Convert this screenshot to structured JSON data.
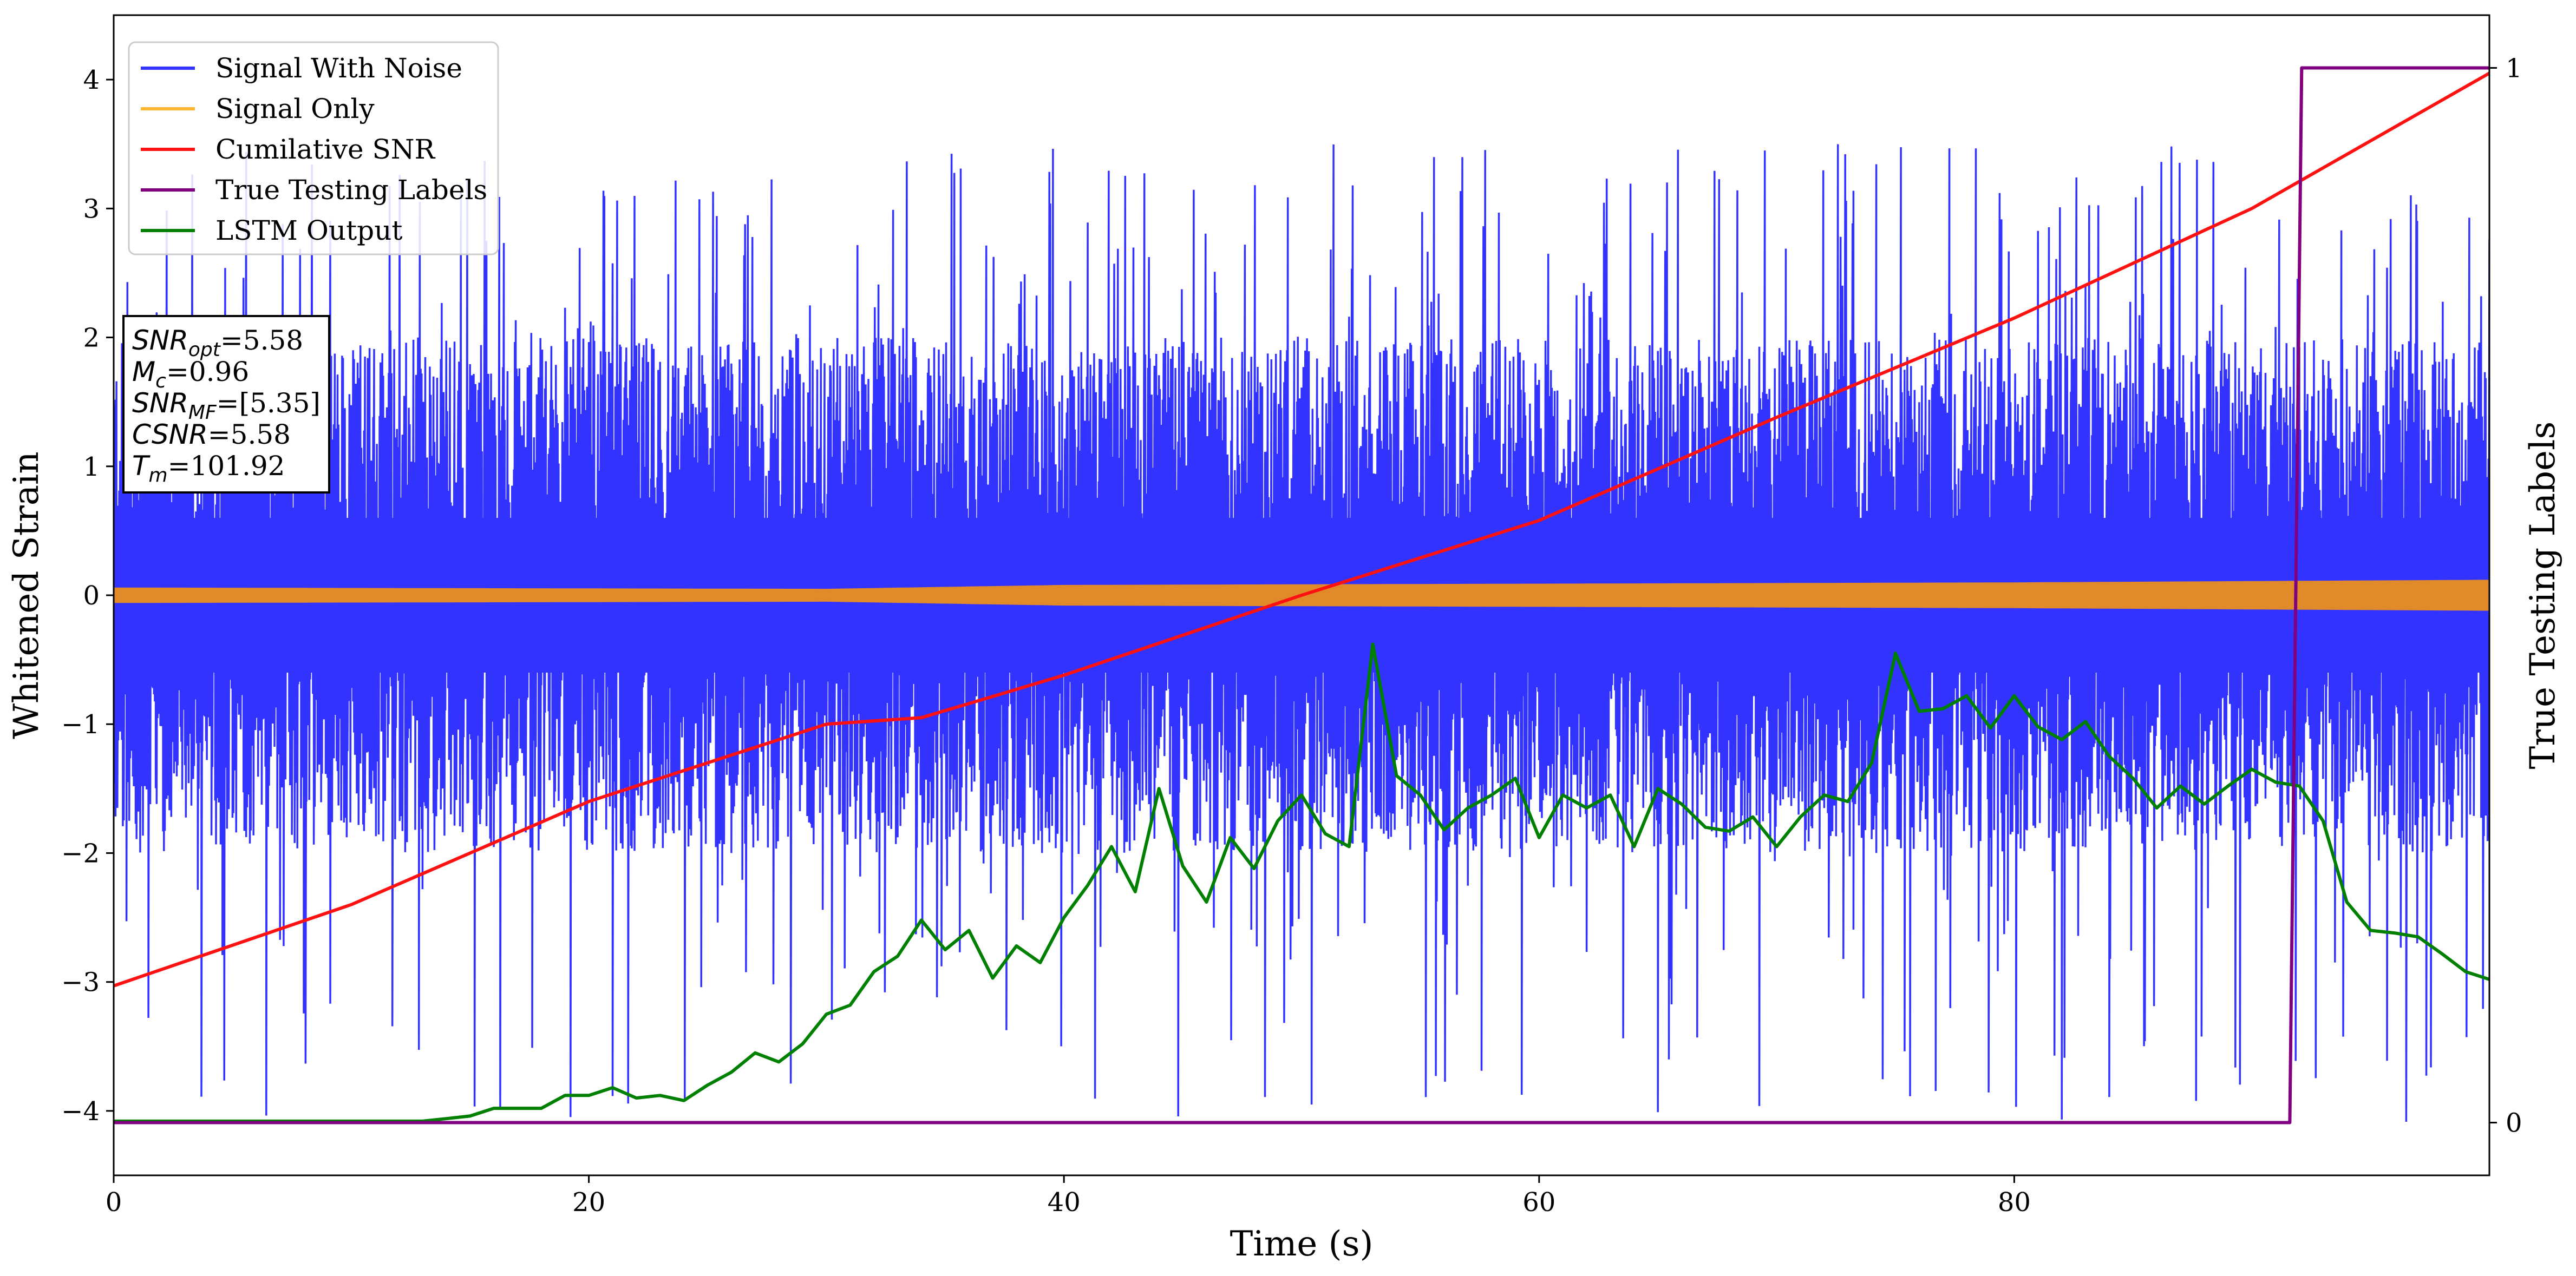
{
  "chart_data": {
    "type": "line",
    "xlabel": "Time (s)",
    "ylabel": "Whitened Strain",
    "ylabel_right": "True Testing Labels",
    "xlim": [
      0,
      100
    ],
    "ylim": [
      -4.5,
      4.5
    ],
    "ylim_right": [
      -0.05,
      1.05
    ],
    "x_ticks": [
      0,
      20,
      40,
      60,
      80
    ],
    "y_ticks": [
      -4,
      -3,
      -2,
      -1,
      0,
      1,
      2,
      3,
      4
    ],
    "y_right_ticks": [
      0,
      1
    ],
    "grid": false,
    "legend": {
      "position": "top-left",
      "entries": [
        {
          "label": "Signal With Noise",
          "color": "#3333ff"
        },
        {
          "label": "Signal Only",
          "color": "#ffb733"
        },
        {
          "label": "Cumilative SNR",
          "color": "#ff1111"
        },
        {
          "label": "True Testing Labels",
          "color": "#800080"
        },
        {
          "label": "LSTM Output",
          "color": "#008000"
        }
      ]
    },
    "annotation": {
      "lines": [
        {
          "name": "SNR",
          "sub": "opt",
          "value": "=5.58"
        },
        {
          "name": "M",
          "sub": "c",
          "value": "=0.96"
        },
        {
          "name": "SNR",
          "sub": "MF",
          "value": "=[5.35]"
        },
        {
          "name": "CSNR",
          "sub": "",
          "value": "=5.58"
        },
        {
          "name": "T",
          "sub": "m",
          "value": "=101.92"
        }
      ]
    },
    "series": [
      {
        "name": "Signal With Noise",
        "axis": "left",
        "color": "#3333ff",
        "noise_band": {
          "typical_max": 2.0,
          "typical_min": -2.0,
          "peak_max": 3.5,
          "peak_min": -4.1,
          "x_range": [
            0,
            100
          ]
        }
      },
      {
        "name": "Signal Only",
        "axis": "left",
        "color": "#e08a2a",
        "band_amplitude": [
          [
            0,
            0.06
          ],
          [
            30,
            0.05
          ],
          [
            40,
            0.08
          ],
          [
            60,
            0.09
          ],
          [
            80,
            0.1
          ],
          [
            100,
            0.12
          ]
        ]
      },
      {
        "name": "Cumilative SNR",
        "axis": "left",
        "color": "#ff1111",
        "points": [
          [
            0,
            -3.03
          ],
          [
            10,
            -2.4
          ],
          [
            20,
            -1.6
          ],
          [
            30,
            -1.0
          ],
          [
            34,
            -0.95
          ],
          [
            40,
            -0.62
          ],
          [
            50,
            0.0
          ],
          [
            60,
            0.58
          ],
          [
            70,
            1.38
          ],
          [
            80,
            2.15
          ],
          [
            90,
            3.0
          ],
          [
            100,
            4.05
          ]
        ]
      },
      {
        "name": "True Testing Labels",
        "axis": "right",
        "color": "#800080",
        "points": [
          [
            0,
            0
          ],
          [
            91.6,
            0
          ],
          [
            92.1,
            1
          ],
          [
            100,
            1
          ]
        ]
      },
      {
        "name": "LSTM Output",
        "axis": "left",
        "color": "#008000",
        "points": [
          [
            0,
            -4.08
          ],
          [
            13,
            -4.08
          ],
          [
            14,
            -4.06
          ],
          [
            15,
            -4.04
          ],
          [
            16,
            -3.98
          ],
          [
            18,
            -3.98
          ],
          [
            19,
            -3.88
          ],
          [
            20,
            -3.88
          ],
          [
            21,
            -3.82
          ],
          [
            22,
            -3.9
          ],
          [
            23,
            -3.88
          ],
          [
            24,
            -3.92
          ],
          [
            25,
            -3.8
          ],
          [
            26,
            -3.7
          ],
          [
            27,
            -3.55
          ],
          [
            28,
            -3.62
          ],
          [
            29,
            -3.48
          ],
          [
            30,
            -3.25
          ],
          [
            31,
            -3.18
          ],
          [
            32,
            -2.92
          ],
          [
            33,
            -2.8
          ],
          [
            34,
            -2.52
          ],
          [
            35,
            -2.75
          ],
          [
            36,
            -2.6
          ],
          [
            37,
            -2.97
          ],
          [
            38,
            -2.72
          ],
          [
            39,
            -2.85
          ],
          [
            40,
            -2.5
          ],
          [
            41,
            -2.25
          ],
          [
            42,
            -1.95
          ],
          [
            43,
            -2.3
          ],
          [
            44,
            -1.5
          ],
          [
            45,
            -2.1
          ],
          [
            46,
            -2.38
          ],
          [
            47,
            -1.88
          ],
          [
            48,
            -2.12
          ],
          [
            49,
            -1.75
          ],
          [
            50,
            -1.55
          ],
          [
            51,
            -1.85
          ],
          [
            52,
            -1.95
          ],
          [
            53,
            -0.38
          ],
          [
            54,
            -1.4
          ],
          [
            55,
            -1.55
          ],
          [
            56,
            -1.82
          ],
          [
            57,
            -1.65
          ],
          [
            58,
            -1.55
          ],
          [
            59,
            -1.42
          ],
          [
            60,
            -1.88
          ],
          [
            61,
            -1.55
          ],
          [
            62,
            -1.65
          ],
          [
            63,
            -1.55
          ],
          [
            64,
            -1.95
          ],
          [
            65,
            -1.5
          ],
          [
            66,
            -1.62
          ],
          [
            67,
            -1.8
          ],
          [
            68,
            -1.83
          ],
          [
            69,
            -1.72
          ],
          [
            70,
            -1.95
          ],
          [
            71,
            -1.72
          ],
          [
            72,
            -1.55
          ],
          [
            73,
            -1.6
          ],
          [
            74,
            -1.3
          ],
          [
            75,
            -0.45
          ],
          [
            76,
            -0.9
          ],
          [
            77,
            -0.88
          ],
          [
            78,
            -0.78
          ],
          [
            79,
            -1.03
          ],
          [
            80,
            -0.78
          ],
          [
            81,
            -1.02
          ],
          [
            82,
            -1.12
          ],
          [
            83,
            -0.98
          ],
          [
            84,
            -1.25
          ],
          [
            85,
            -1.42
          ],
          [
            86,
            -1.65
          ],
          [
            87,
            -1.48
          ],
          [
            88,
            -1.62
          ],
          [
            89,
            -1.48
          ],
          [
            90,
            -1.35
          ],
          [
            91,
            -1.45
          ],
          [
            92,
            -1.48
          ],
          [
            93,
            -1.75
          ],
          [
            94,
            -2.38
          ],
          [
            95,
            -2.6
          ],
          [
            96,
            -2.62
          ],
          [
            97,
            -2.65
          ],
          [
            98,
            -2.78
          ],
          [
            99,
            -2.92
          ],
          [
            100,
            -2.98
          ]
        ]
      }
    ]
  }
}
